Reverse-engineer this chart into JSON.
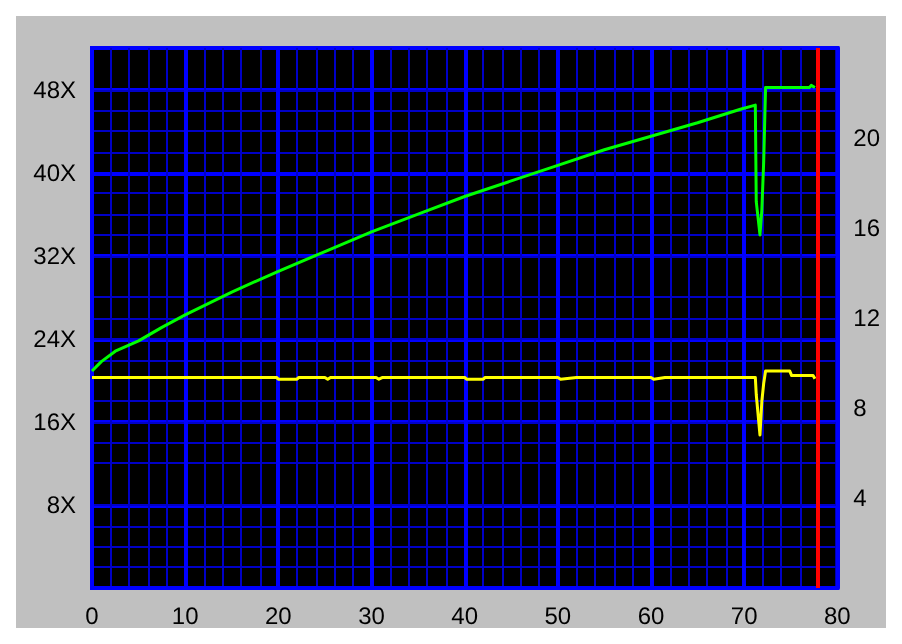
{
  "chart_data": {
    "type": "line",
    "xlim": [
      0,
      80
    ],
    "xticks": [
      0,
      10,
      20,
      30,
      40,
      50,
      60,
      70,
      80
    ],
    "ylim": [
      0,
      52
    ],
    "yticks": [
      {
        "value": 8,
        "label": "8X"
      },
      {
        "value": 16,
        "label": "16X"
      },
      {
        "value": 24,
        "label": "24X"
      },
      {
        "value": 32,
        "label": "32X"
      },
      {
        "value": 40,
        "label": "40X"
      },
      {
        "value": 48,
        "label": "48X"
      }
    ],
    "y2lim": [
      0,
      24
    ],
    "y2ticks": [
      4,
      8,
      12,
      16,
      20
    ],
    "grid": true,
    "marker": "none",
    "line_style": "solid",
    "ref_lines": [
      {
        "axis": "x",
        "value": 77.8,
        "color": "#ff0000"
      }
    ],
    "series": [
      {
        "color": "#00ff00",
        "x": [
          0,
          1,
          2.5,
          5,
          7.5,
          10,
          15,
          20,
          25,
          30,
          35,
          40,
          45,
          50,
          55,
          60,
          65,
          69.6,
          71.2,
          71.3,
          71.7,
          71.9,
          72.1,
          72.3,
          77.0,
          77.2,
          77.6
        ],
        "values": [
          20.9,
          21.8,
          22.8,
          23.8,
          25.1,
          26.3,
          28.5,
          30.5,
          32.4,
          34.3,
          36.0,
          37.7,
          39.2,
          40.7,
          42.2,
          43.5,
          44.8,
          46.1,
          46.5,
          37.2,
          34.0,
          36.4,
          41.1,
          48.2,
          48.2,
          48.4,
          48.2
        ]
      },
      {
        "color": "#ffff00",
        "axis": "y2",
        "x": [
          0,
          19.8,
          20,
          22,
          22.2,
          25,
          25.3,
          25.6,
          30.5,
          30.8,
          31.2,
          40,
          40.2,
          42,
          42.2,
          50,
          50.3,
          52,
          60,
          60.3,
          61.5,
          70,
          71.2,
          71.3,
          71.7,
          71.9,
          72.1,
          72.3,
          74.9,
          75.1,
          77.4,
          77.6
        ],
        "values": [
          9.36,
          9.36,
          9.28,
          9.28,
          9.36,
          9.36,
          9.28,
          9.36,
          9.36,
          9.28,
          9.36,
          9.36,
          9.28,
          9.28,
          9.36,
          9.36,
          9.28,
          9.36,
          9.36,
          9.28,
          9.36,
          9.36,
          9.36,
          8.6,
          6.8,
          8.3,
          9.1,
          9.64,
          9.64,
          9.44,
          9.44,
          9.3
        ]
      }
    ]
  }
}
